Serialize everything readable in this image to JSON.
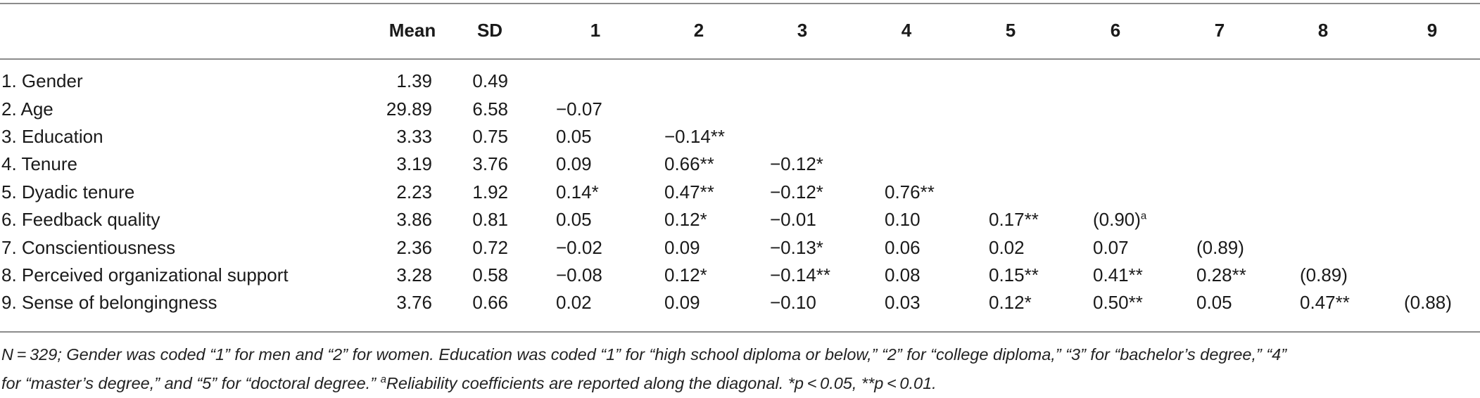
{
  "table": {
    "headers": [
      "Mean",
      "SD",
      "1",
      "2",
      "3",
      "4",
      "5",
      "6",
      "7",
      "8",
      "9"
    ],
    "rows": [
      {
        "label": "1. Gender",
        "mean": "1.39",
        "sd": "0.49",
        "cells": []
      },
      {
        "label": "2. Age",
        "mean": "29.89",
        "sd": "6.58",
        "cells": [
          "−0.07"
        ]
      },
      {
        "label": "3. Education",
        "mean": "3.33",
        "sd": "0.75",
        "cells": [
          "0.05",
          "−0.14**"
        ]
      },
      {
        "label": "4. Tenure",
        "mean": "3.19",
        "sd": "3.76",
        "cells": [
          "0.09",
          "0.66**",
          "−0.12*"
        ]
      },
      {
        "label": "5. Dyadic tenure",
        "mean": "2.23",
        "sd": "1.92",
        "cells": [
          "0.14*",
          "0.47**",
          "−0.12*",
          "0.76**"
        ]
      },
      {
        "label": "6. Feedback quality",
        "mean": "3.86",
        "sd": "0.81",
        "cells": [
          "0.05",
          "0.12*",
          "−0.01",
          "0.10",
          "0.17**",
          "(0.90)"
        ]
      },
      {
        "label": "7. Conscientiousness",
        "mean": "2.36",
        "sd": "0.72",
        "cells": [
          "−0.02",
          "0.09",
          "−0.13*",
          "0.06",
          "0.02",
          "0.07",
          "(0.89)"
        ]
      },
      {
        "label": "8. Perceived organizational support",
        "mean": "3.28",
        "sd": "0.58",
        "cells": [
          "−0.08",
          "0.12*",
          "−0.14**",
          "0.08",
          "0.15**",
          "0.41**",
          "0.28**",
          "(0.89)"
        ]
      },
      {
        "label": "9. Sense of belongingness",
        "mean": "3.76",
        "sd": "0.66",
        "cells": [
          "0.02",
          "0.09",
          "−0.10",
          "0.03",
          "0.12*",
          "0.50**",
          "0.05",
          "0.47**",
          "(0.88)"
        ]
      }
    ],
    "diag_superscript": "a"
  },
  "note": {
    "line1": "N = 329; Gender was coded “1” for men and “2” for women. Education was coded “1” for “high school diploma or below,” “2” for “college diploma,” “3” for “bachelor’s degree,” “4”",
    "line2_a": "for “master’s degree,” and “5” for “doctoral degree.” ",
    "line2_sup": "a",
    "line2_b": "Reliability coefficients are reported along the diagonal. *p < 0.05, **p < 0.01."
  }
}
